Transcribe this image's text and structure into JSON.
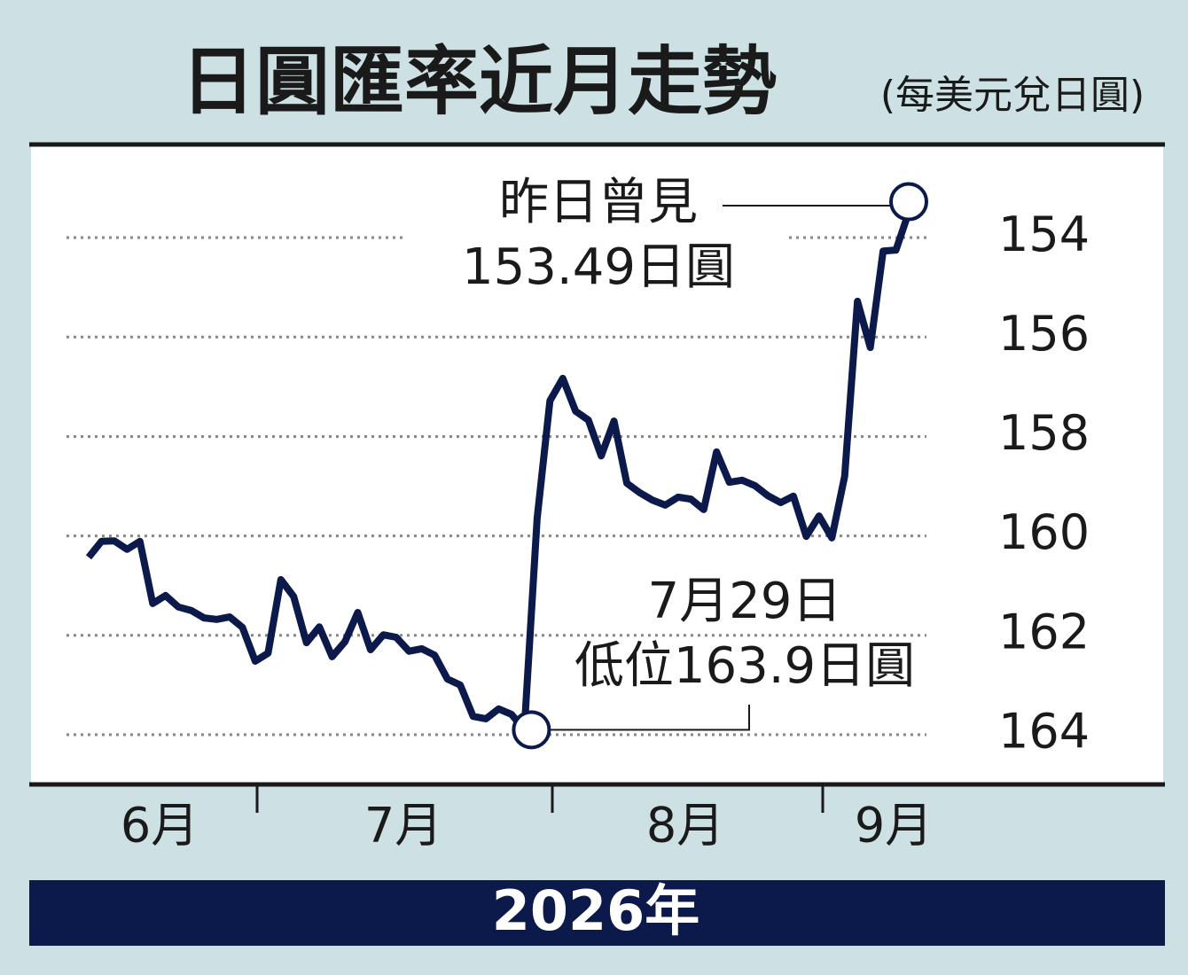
{
  "chart_data": {
    "type": "line",
    "title": "日圓匯率近月走勢",
    "subtitle": "(每美元兌日圓)",
    "footer": "2026年",
    "months": [
      "6月",
      "7月",
      "8月",
      "9月"
    ],
    "categories": [
      null,
      null,
      null,
      null,
      null,
      null,
      null,
      null,
      null,
      null,
      null,
      null,
      null,
      null,
      null,
      null,
      null,
      null,
      null,
      null,
      null,
      null,
      null,
      null,
      null,
      null,
      null,
      null,
      null,
      null,
      null,
      null,
      null,
      null,
      null,
      null,
      null,
      null,
      null,
      null,
      null,
      null,
      null,
      null,
      null,
      null,
      null,
      null,
      null,
      null,
      null,
      null,
      null,
      null,
      null,
      null,
      null,
      null,
      null,
      null,
      null,
      null,
      null,
      null,
      null
    ],
    "series": [
      {
        "name": "日圓匯率",
        "color": "#0b1a4a",
        "values": [
          160.43,
          160.11,
          160.1,
          160.27,
          160.11,
          161.36,
          161.2,
          161.43,
          161.5,
          161.65,
          161.68,
          161.63,
          161.84,
          162.52,
          162.36,
          160.88,
          161.22,
          162.15,
          161.83,
          162.43,
          162.13,
          161.54,
          162.29,
          161.99,
          162.04,
          162.32,
          162.27,
          162.4,
          162.88,
          163.0,
          163.63,
          163.68,
          163.48,
          163.59,
          163.9,
          159.65,
          157.28,
          156.83,
          157.49,
          157.67,
          158.39,
          157.69,
          158.94,
          159.13,
          159.28,
          159.38,
          159.22,
          159.26,
          159.47,
          158.31,
          158.92,
          158.88,
          158.99,
          159.19,
          159.33,
          159.2,
          160.01,
          159.6,
          160.04,
          158.8,
          155.28,
          156.21,
          154.27,
          154.25,
          153.49
        ]
      }
    ],
    "annotations": [
      [
        "昨日曾見",
        "153.49日圓"
      ],
      [
        "7月29日",
        "低位163.9日圓"
      ]
    ],
    "ylim": [
      165,
      152.25
    ],
    "y_inverted": true,
    "yticks": [
      154,
      156,
      158,
      160,
      162,
      164
    ],
    "grid": true
  }
}
